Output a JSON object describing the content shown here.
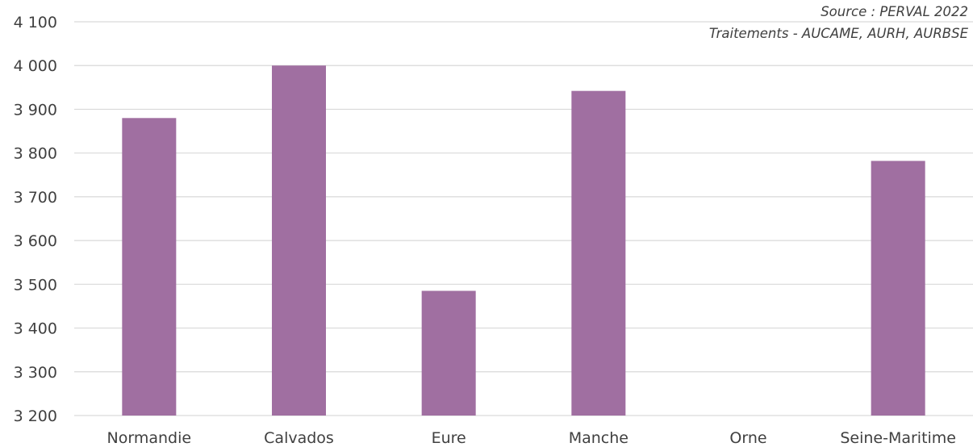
{
  "chart_data": {
    "type": "bar",
    "title": "",
    "xlabel": "",
    "ylabel": "",
    "categories": [
      "Normandie",
      "Calvados",
      "Eure",
      "Manche",
      "Orne",
      "Seine-Maritime"
    ],
    "values": [
      3880,
      4000,
      3485,
      3942,
      null,
      3782
    ],
    "ylim": [
      3200,
      4100
    ],
    "yticks": [
      3200,
      3300,
      3400,
      3500,
      3600,
      3700,
      3800,
      3900,
      4000,
      4100
    ],
    "ytick_labels": [
      "3 200",
      "3 300",
      "3 400",
      "3 500",
      "3 600",
      "3 700",
      "3 800",
      "3 900",
      "4 000",
      "4 100"
    ],
    "grid": true,
    "bar_color": "#a06fa1",
    "legend": "none",
    "annotations": [
      "Source : PERVAL 2022",
      "Traitements - AUCAME, AURH, AURBSE"
    ]
  }
}
